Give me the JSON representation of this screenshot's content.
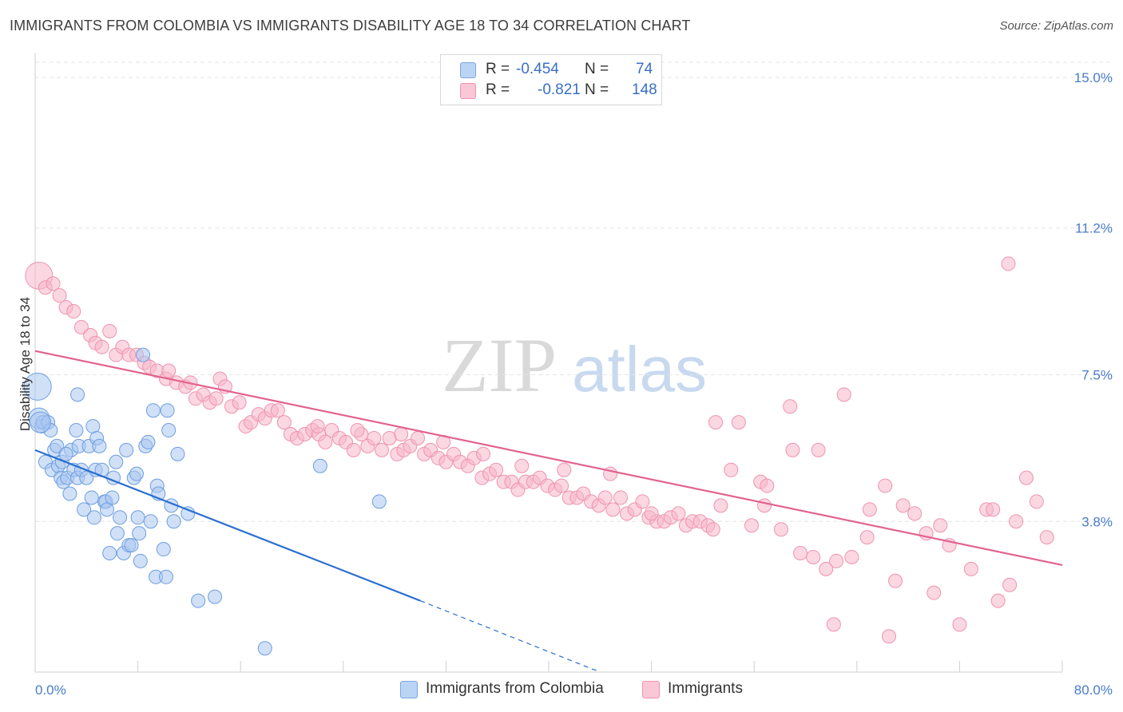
{
  "header": {
    "title": "IMMIGRANTS FROM COLOMBIA VS IMMIGRANTS DISABILITY AGE 18 TO 34 CORRELATION CHART",
    "source": "Source: ZipAtlas.com"
  },
  "watermark": {
    "zip": "ZIP",
    "atlas": "atlas"
  },
  "legend": {
    "rows": [
      {
        "r_label": "R =",
        "r_value": "-0.454",
        "n_label": "N =",
        "n_value": "74"
      },
      {
        "r_label": "R =",
        "r_value": "-0.821",
        "n_label": "N =",
        "n_value": "148"
      }
    ]
  },
  "bottom_legend": {
    "items": [
      {
        "label": "Immigrants from Colombia"
      },
      {
        "label": "Immigrants"
      }
    ]
  },
  "colors": {
    "blue_fill": "#a9c7f0",
    "blue_stroke": "#6d9ee0",
    "blue_line": "#2a6fd0",
    "pink_fill": "#f7b7cb",
    "pink_stroke": "#ef93b0",
    "pink_line": "#e2638e",
    "grid": "#e4e4e4",
    "tick_text": "#4a7cc9"
  },
  "chart_data": {
    "type": "scatter",
    "title": "IMMIGRANTS FROM COLOMBIA VS IMMIGRANTS DISABILITY AGE 18 TO 34 CORRELATION CHART",
    "xlabel": "",
    "ylabel": "Disability Age 18 to 34",
    "xlim": [
      0,
      80
    ],
    "ylim": [
      0,
      15.5
    ],
    "x_tick_labels": [
      "0.0%",
      "80.0%"
    ],
    "y_ticks": [
      3.8,
      7.5,
      11.2,
      15.0
    ],
    "y_tick_labels": [
      "3.8%",
      "7.5%",
      "11.2%",
      "15.0%"
    ],
    "grid": "horizontal dashed",
    "legend_placement": "top-center",
    "series": [
      {
        "name": "Immigrants from Colombia",
        "color": "#a9c7f0",
        "trend": {
          "x0": 0,
          "y0": 5.6,
          "x1": 30,
          "y1": 1.8,
          "dash_to_x": 44,
          "dash_to_y": 0
        },
        "points": [
          [
            0.2,
            7.2
          ],
          [
            0.3,
            6.4
          ],
          [
            0.5,
            6.2
          ],
          [
            0.6,
            6.3
          ],
          [
            0.8,
            5.3
          ],
          [
            1.0,
            6.3
          ],
          [
            1.2,
            6.1
          ],
          [
            1.3,
            5.1
          ],
          [
            1.5,
            5.6
          ],
          [
            1.7,
            5.7
          ],
          [
            1.8,
            5.2
          ],
          [
            2.0,
            4.9
          ],
          [
            2.1,
            5.3
          ],
          [
            2.2,
            4.8
          ],
          [
            2.5,
            4.9
          ],
          [
            2.7,
            4.5
          ],
          [
            2.8,
            5.6
          ],
          [
            3.0,
            5.1
          ],
          [
            3.2,
            6.1
          ],
          [
            3.3,
            4.9
          ],
          [
            3.4,
            5.7
          ],
          [
            3.6,
            5.1
          ],
          [
            3.8,
            4.1
          ],
          [
            4.0,
            4.9
          ],
          [
            4.2,
            5.7
          ],
          [
            4.4,
            4.4
          ],
          [
            4.5,
            6.2
          ],
          [
            4.6,
            3.9
          ],
          [
            4.7,
            5.1
          ],
          [
            4.8,
            5.9
          ],
          [
            5.0,
            5.7
          ],
          [
            5.2,
            5.1
          ],
          [
            5.4,
            4.3
          ],
          [
            5.5,
            4.3
          ],
          [
            5.6,
            4.1
          ],
          [
            5.8,
            3.0
          ],
          [
            6.0,
            4.4
          ],
          [
            6.1,
            4.9
          ],
          [
            6.3,
            5.3
          ],
          [
            6.4,
            3.5
          ],
          [
            6.6,
            3.9
          ],
          [
            6.9,
            3.0
          ],
          [
            7.1,
            5.6
          ],
          [
            7.3,
            3.2
          ],
          [
            7.5,
            3.2
          ],
          [
            7.7,
            4.9
          ],
          [
            7.9,
            5.0
          ],
          [
            8.0,
            3.9
          ],
          [
            8.1,
            3.5
          ],
          [
            8.2,
            2.8
          ],
          [
            8.4,
            8.0
          ],
          [
            8.6,
            5.7
          ],
          [
            8.8,
            5.8
          ],
          [
            9.0,
            3.8
          ],
          [
            9.2,
            6.6
          ],
          [
            9.4,
            2.4
          ],
          [
            9.5,
            4.7
          ],
          [
            9.6,
            4.5
          ],
          [
            10.0,
            3.1
          ],
          [
            10.2,
            2.4
          ],
          [
            10.3,
            6.6
          ],
          [
            10.4,
            6.1
          ],
          [
            10.6,
            4.2
          ],
          [
            10.8,
            3.8
          ],
          [
            11.1,
            5.5
          ],
          [
            11.9,
            4.0
          ],
          [
            12.7,
            1.8
          ],
          [
            14.0,
            1.9
          ],
          [
            17.9,
            0.6
          ],
          [
            22.2,
            5.2
          ],
          [
            26.8,
            4.3
          ],
          [
            3.3,
            7.0
          ],
          [
            0.4,
            6.3
          ],
          [
            2.4,
            5.5
          ]
        ]
      },
      {
        "name": "Immigrants",
        "color": "#f7b7cb",
        "trend": {
          "x0": 0,
          "y0": 8.1,
          "x1": 80,
          "y1": 2.7
        },
        "points": [
          [
            0.3,
            10.0
          ],
          [
            0.8,
            9.7
          ],
          [
            1.4,
            9.8
          ],
          [
            1.9,
            9.5
          ],
          [
            2.4,
            9.2
          ],
          [
            3.0,
            9.1
          ],
          [
            3.6,
            8.7
          ],
          [
            4.3,
            8.5
          ],
          [
            4.7,
            8.3
          ],
          [
            5.2,
            8.2
          ],
          [
            5.8,
            8.6
          ],
          [
            6.3,
            8.0
          ],
          [
            6.8,
            8.2
          ],
          [
            7.3,
            8.0
          ],
          [
            7.9,
            8.0
          ],
          [
            8.5,
            7.8
          ],
          [
            8.9,
            7.7
          ],
          [
            9.5,
            7.6
          ],
          [
            10.2,
            7.4
          ],
          [
            10.4,
            7.6
          ],
          [
            11.0,
            7.3
          ],
          [
            11.7,
            7.2
          ],
          [
            12.1,
            7.3
          ],
          [
            12.5,
            6.9
          ],
          [
            13.1,
            7.0
          ],
          [
            13.6,
            6.8
          ],
          [
            14.1,
            6.9
          ],
          [
            14.4,
            7.4
          ],
          [
            14.8,
            7.2
          ],
          [
            15.3,
            6.7
          ],
          [
            15.9,
            6.8
          ],
          [
            16.4,
            6.2
          ],
          [
            16.8,
            6.3
          ],
          [
            17.4,
            6.5
          ],
          [
            17.9,
            6.4
          ],
          [
            18.4,
            6.6
          ],
          [
            18.9,
            6.6
          ],
          [
            19.4,
            6.3
          ],
          [
            19.9,
            6.0
          ],
          [
            20.4,
            5.9
          ],
          [
            21.0,
            6.0
          ],
          [
            21.6,
            6.1
          ],
          [
            22.1,
            6.0
          ],
          [
            22.6,
            5.8
          ],
          [
            23.1,
            6.1
          ],
          [
            23.7,
            5.9
          ],
          [
            24.2,
            5.8
          ],
          [
            24.8,
            5.6
          ],
          [
            25.4,
            6.0
          ],
          [
            25.9,
            5.7
          ],
          [
            26.4,
            5.9
          ],
          [
            27.0,
            5.6
          ],
          [
            27.6,
            5.9
          ],
          [
            28.2,
            5.5
          ],
          [
            28.7,
            5.6
          ],
          [
            29.2,
            5.7
          ],
          [
            29.8,
            5.9
          ],
          [
            30.3,
            5.5
          ],
          [
            30.8,
            5.6
          ],
          [
            31.4,
            5.4
          ],
          [
            32.0,
            5.3
          ],
          [
            32.6,
            5.5
          ],
          [
            33.1,
            5.3
          ],
          [
            33.7,
            5.2
          ],
          [
            34.2,
            5.4
          ],
          [
            34.8,
            4.9
          ],
          [
            35.4,
            5.0
          ],
          [
            35.9,
            5.1
          ],
          [
            36.5,
            4.8
          ],
          [
            37.1,
            4.8
          ],
          [
            37.6,
            4.6
          ],
          [
            38.2,
            4.8
          ],
          [
            38.8,
            4.8
          ],
          [
            39.3,
            4.9
          ],
          [
            39.9,
            4.7
          ],
          [
            40.5,
            4.6
          ],
          [
            41.0,
            4.7
          ],
          [
            41.6,
            4.4
          ],
          [
            42.2,
            4.4
          ],
          [
            42.7,
            4.5
          ],
          [
            43.3,
            4.3
          ],
          [
            43.9,
            4.2
          ],
          [
            44.4,
            4.4
          ],
          [
            45.0,
            4.1
          ],
          [
            45.6,
            4.4
          ],
          [
            46.1,
            4.0
          ],
          [
            46.7,
            4.1
          ],
          [
            47.3,
            4.3
          ],
          [
            47.8,
            3.9
          ],
          [
            48.4,
            3.8
          ],
          [
            49.0,
            3.8
          ],
          [
            49.5,
            3.9
          ],
          [
            50.1,
            4.0
          ],
          [
            50.7,
            3.7
          ],
          [
            51.2,
            3.8
          ],
          [
            51.8,
            3.8
          ],
          [
            52.4,
            3.7
          ],
          [
            53.0,
            6.3
          ],
          [
            53.4,
            4.2
          ],
          [
            54.2,
            5.1
          ],
          [
            54.8,
            6.3
          ],
          [
            55.8,
            3.7
          ],
          [
            56.5,
            4.8
          ],
          [
            57.0,
            4.7
          ],
          [
            58.1,
            3.6
          ],
          [
            58.8,
            6.7
          ],
          [
            59.6,
            3.0
          ],
          [
            60.6,
            2.9
          ],
          [
            61.6,
            2.6
          ],
          [
            62.4,
            2.8
          ],
          [
            63.6,
            2.9
          ],
          [
            64.8,
            3.4
          ],
          [
            66.2,
            4.7
          ],
          [
            67.0,
            2.3
          ],
          [
            68.5,
            4.0
          ],
          [
            69.4,
            3.5
          ],
          [
            70.0,
            2.0
          ],
          [
            71.2,
            3.2
          ],
          [
            72.0,
            1.2
          ],
          [
            72.9,
            2.6
          ],
          [
            74.1,
            4.1
          ],
          [
            74.6,
            4.1
          ],
          [
            75.0,
            1.8
          ],
          [
            75.9,
            2.2
          ],
          [
            76.4,
            3.8
          ],
          [
            77.2,
            4.9
          ],
          [
            78.0,
            4.3
          ],
          [
            78.8,
            3.4
          ],
          [
            75.8,
            10.3
          ],
          [
            63.0,
            7.0
          ],
          [
            59.0,
            5.6
          ],
          [
            61.0,
            5.6
          ],
          [
            65.0,
            4.1
          ],
          [
            67.6,
            4.2
          ],
          [
            70.5,
            3.7
          ],
          [
            66.5,
            0.9
          ],
          [
            62.2,
            1.2
          ],
          [
            56.8,
            4.2
          ],
          [
            52.8,
            3.6
          ],
          [
            48.0,
            4.0
          ],
          [
            44.8,
            5.0
          ],
          [
            41.2,
            5.1
          ],
          [
            37.9,
            5.2
          ],
          [
            34.9,
            5.5
          ],
          [
            31.8,
            5.8
          ],
          [
            28.5,
            6.0
          ],
          [
            25.1,
            6.1
          ],
          [
            22.0,
            6.2
          ]
        ]
      }
    ]
  }
}
